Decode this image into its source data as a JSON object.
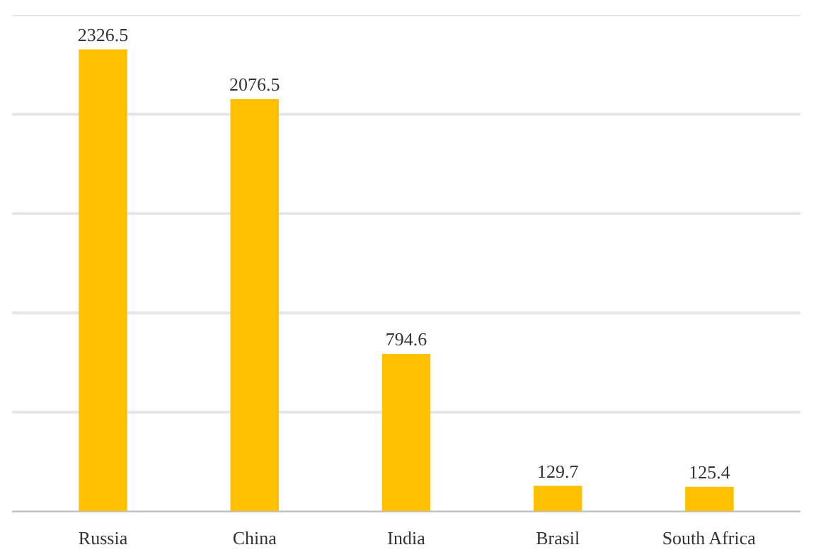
{
  "chart_data": {
    "type": "bar",
    "categories": [
      "Russia",
      "China",
      "India",
      "Brasil",
      "South Africa"
    ],
    "values": [
      2326.5,
      2076.5,
      794.6,
      129.7,
      125.4
    ],
    "color": "#ffc000",
    "ylim": [
      0,
      2500
    ],
    "yticks": [
      {
        "value": 0,
        "label": null
      },
      {
        "value": 500,
        "label": null
      },
      {
        "value": 1000,
        "label": null
      },
      {
        "value": 1500,
        "label": null
      },
      {
        "value": 2000,
        "label": null
      },
      {
        "value": 2500,
        "label": null
      }
    ],
    "tick_labels": "x",
    "grid": "y",
    "data_labels": true
  }
}
